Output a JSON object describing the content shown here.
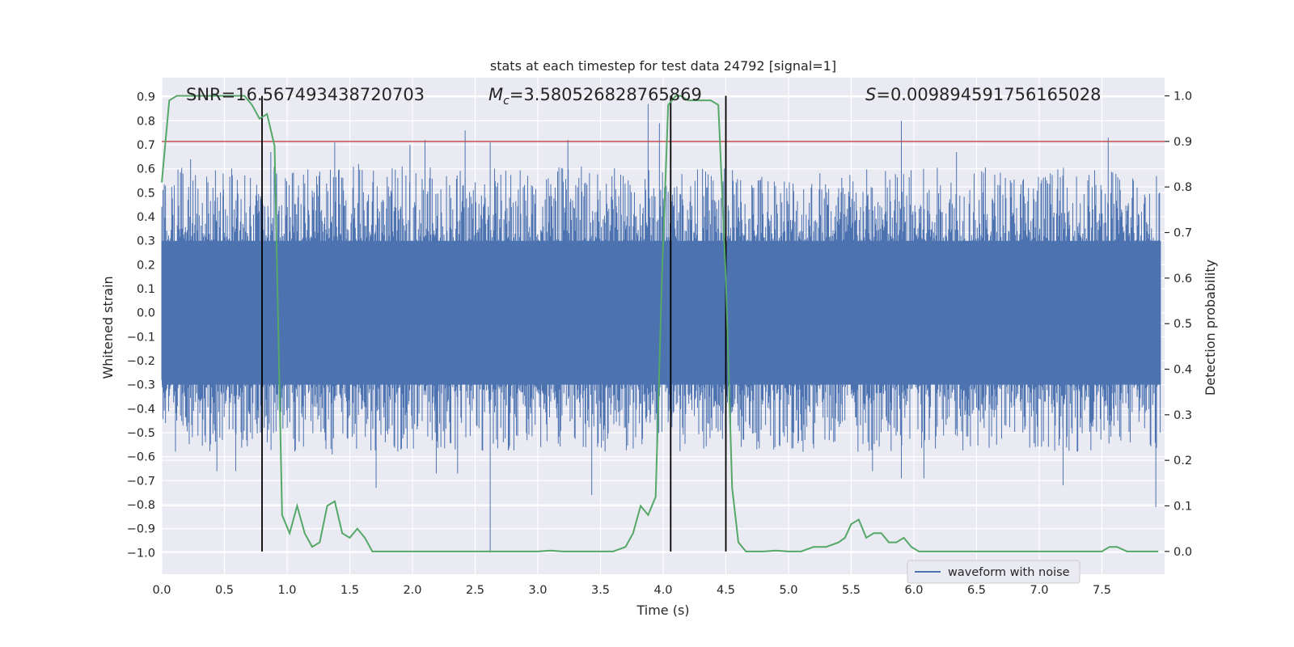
{
  "chart_data": {
    "type": "line",
    "title": "stats at each timestep for test data 24792 [signal=1]",
    "xlabel": "Time (s)",
    "ylabel_left": "Whitened strain",
    "ylabel_right": "Detection probability",
    "xlim": [
      0,
      8
    ],
    "ylim_left": [
      -1.09,
      0.98
    ],
    "ylim_right": [
      -0.05,
      1.04
    ],
    "x_ticks": [
      0.0,
      0.5,
      1.0,
      1.5,
      2.0,
      2.5,
      3.0,
      3.5,
      4.0,
      4.5,
      5.0,
      5.5,
      6.0,
      6.5,
      7.0,
      7.5
    ],
    "x_tick_labels": [
      "0.0",
      "0.5",
      "1.0",
      "1.5",
      "2.0",
      "2.5",
      "3.0",
      "3.5",
      "4.0",
      "4.5",
      "5.0",
      "5.5",
      "6.0",
      "6.5",
      "7.0",
      "7.5"
    ],
    "y_left_ticks": [
      0.9,
      0.8,
      0.7,
      0.6,
      0.5,
      0.4,
      0.3,
      0.2,
      0.1,
      0.0,
      -0.1,
      -0.2,
      -0.3,
      -0.4,
      -0.5,
      -0.6,
      -0.7,
      -0.8,
      -0.9,
      -1.0
    ],
    "y_left_tick_labels": [
      "0.9",
      "0.8",
      "0.7",
      "0.6",
      "0.5",
      "0.4",
      "0.3",
      "0.2",
      "0.1",
      "0.0",
      "−0.1",
      "−0.2",
      "−0.3",
      "−0.4",
      "−0.5",
      "−0.6",
      "−0.7",
      "−0.8",
      "−0.9",
      "−1.0"
    ],
    "y_right_ticks": [
      1.0,
      0.9,
      0.8,
      0.7,
      0.6,
      0.5,
      0.4,
      0.3,
      0.2,
      0.1,
      0.0
    ],
    "y_right_tick_labels": [
      "1.0",
      "0.9",
      "0.8",
      "0.7",
      "0.6",
      "0.5",
      "0.4",
      "0.3",
      "0.2",
      "0.1",
      "0.0"
    ],
    "annotations": {
      "snr": "SNR=16.567493438720703",
      "mc_symbol": "M",
      "mc_subscript": "c",
      "mc_value": "=3.580526828765869",
      "s_symbol": "S",
      "s_value": "=0.009894591756165028"
    },
    "threshold": {
      "value": 0.9,
      "axis": "right",
      "color": "#c44e52"
    },
    "vertical_lines": [
      0.8,
      4.06,
      4.5
    ],
    "legend": {
      "label": "waveform with noise",
      "placement": "lower-right"
    },
    "grid": true,
    "colors": {
      "waveform": "#4c72b0",
      "probability": "#55a868",
      "background": "#eaeaf2",
      "vlines": "#000000"
    },
    "series": [
      {
        "name": "waveform with noise",
        "axis": "left",
        "kind": "dense-noise",
        "sample_count": 1600,
        "amplitude_core": 0.3,
        "peaks": [
          {
            "x": 0.23,
            "y": 0.64
          },
          {
            "x": 0.49,
            "y": 0.58
          },
          {
            "x": 0.87,
            "y": 0.67
          },
          {
            "x": 1.38,
            "y": 0.71
          },
          {
            "x": 1.57,
            "y": 0.62
          },
          {
            "x": 1.98,
            "y": 0.7
          },
          {
            "x": 2.1,
            "y": 0.72
          },
          {
            "x": 2.42,
            "y": 0.76
          },
          {
            "x": 2.62,
            "y": 0.71
          },
          {
            "x": 3.24,
            "y": 0.72
          },
          {
            "x": 3.88,
            "y": 0.87
          },
          {
            "x": 3.97,
            "y": 0.79
          },
          {
            "x": 5.9,
            "y": 0.8
          },
          {
            "x": 6.34,
            "y": 0.67
          },
          {
            "x": 7.55,
            "y": 0.73
          }
        ],
        "troughs": [
          {
            "x": 0.44,
            "y": -0.66
          },
          {
            "x": 0.59,
            "y": -0.66
          },
          {
            "x": 1.36,
            "y": -0.59
          },
          {
            "x": 1.71,
            "y": -0.73
          },
          {
            "x": 2.19,
            "y": -0.67
          },
          {
            "x": 2.36,
            "y": -0.67
          },
          {
            "x": 2.62,
            "y": -1.0
          },
          {
            "x": 3.43,
            "y": -0.76
          },
          {
            "x": 5.67,
            "y": -0.66
          },
          {
            "x": 5.9,
            "y": -0.69
          },
          {
            "x": 6.08,
            "y": -0.69
          },
          {
            "x": 7.19,
            "y": -0.72
          },
          {
            "x": 7.93,
            "y": -0.81
          }
        ]
      },
      {
        "name": "Detection probability",
        "axis": "right",
        "x": [
          0.0,
          0.06,
          0.12,
          0.18,
          0.24,
          0.3,
          0.36,
          0.42,
          0.48,
          0.54,
          0.6,
          0.66,
          0.72,
          0.78,
          0.84,
          0.9,
          0.96,
          1.02,
          1.08,
          1.14,
          1.2,
          1.26,
          1.32,
          1.38,
          1.44,
          1.5,
          1.56,
          1.62,
          1.68,
          1.74,
          1.8,
          2.0,
          2.2,
          2.4,
          2.6,
          2.8,
          3.0,
          3.1,
          3.2,
          3.4,
          3.6,
          3.7,
          3.76,
          3.82,
          3.88,
          3.94,
          3.99,
          4.04,
          4.1,
          4.14,
          4.2,
          4.26,
          4.32,
          4.38,
          4.44,
          4.5,
          4.55,
          4.6,
          4.66,
          4.72,
          4.8,
          4.9,
          5.0,
          5.1,
          5.2,
          5.3,
          5.4,
          5.45,
          5.5,
          5.56,
          5.62,
          5.68,
          5.74,
          5.8,
          5.86,
          5.92,
          5.98,
          6.04,
          6.1,
          6.2,
          6.3,
          6.4,
          6.6,
          6.8,
          7.0,
          7.2,
          7.4,
          7.5,
          7.56,
          7.62,
          7.7,
          7.8,
          7.95
        ],
        "values": [
          0.81,
          0.99,
          1.0,
          1.0,
          1.0,
          1.0,
          1.0,
          1.0,
          1.0,
          1.0,
          1.0,
          1.0,
          0.98,
          0.95,
          0.96,
          0.89,
          0.08,
          0.04,
          0.1,
          0.04,
          0.01,
          0.02,
          0.1,
          0.11,
          0.04,
          0.03,
          0.05,
          0.03,
          0.0,
          0.0,
          0.0,
          0.0,
          0.0,
          0.0,
          0.0,
          0.0,
          0.0,
          0.002,
          0.0,
          0.0,
          0.0,
          0.01,
          0.04,
          0.1,
          0.08,
          0.12,
          0.6,
          0.98,
          1.0,
          1.0,
          0.99,
          0.99,
          0.99,
          0.99,
          0.98,
          0.6,
          0.14,
          0.02,
          0.0,
          0.0,
          0.0,
          0.002,
          0.0,
          0.0,
          0.01,
          0.01,
          0.02,
          0.03,
          0.06,
          0.07,
          0.03,
          0.04,
          0.04,
          0.02,
          0.02,
          0.03,
          0.01,
          0.0,
          0.0,
          0.0,
          0.0,
          0.0,
          0.0,
          0.0,
          0.0,
          0.0,
          0.0,
          0.0,
          0.01,
          0.01,
          0.0,
          0.0,
          0.0
        ]
      }
    ]
  }
}
